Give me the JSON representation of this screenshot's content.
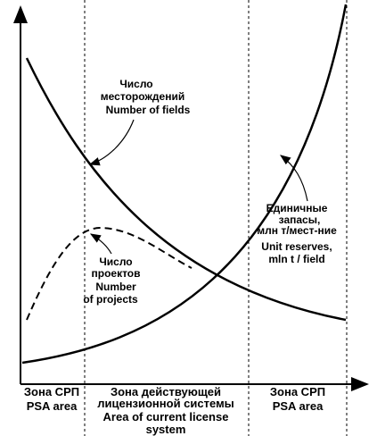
{
  "fields_label": [
    "Число",
    "месторождений",
    "Number of fields"
  ],
  "reserves_label": [
    "Единичные",
    "запасы,",
    "млн т/мест-ние",
    "Unit reserves,",
    "mln t / field"
  ],
  "projects_label": [
    "Число",
    "проектов",
    "Number",
    "of projects"
  ],
  "zones": [
    {
      "lines": [
        "Зона СРП",
        "PSA  area"
      ]
    },
    {
      "lines": [
        "Зона действующей",
        "лицензионной системы",
        "Area of current license",
        "system"
      ]
    },
    {
      "lines": [
        "Зона СРП",
        "PSA  area"
      ]
    }
  ]
}
